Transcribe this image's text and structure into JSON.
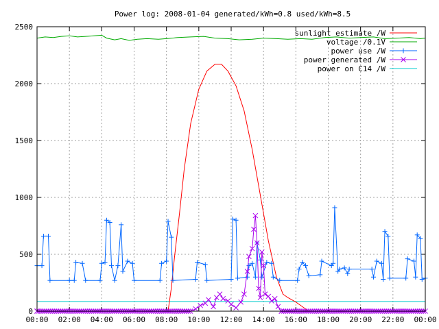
{
  "chart_data": {
    "type": "line",
    "title": "Power log: 2008-01-04 generated/kWh=0.8 used/kWh=8.5",
    "xlabel": "",
    "ylabel": "",
    "x_unit": "hours",
    "xlim": [
      0,
      24
    ],
    "ylim": [
      0,
      2500
    ],
    "grid": true,
    "legend_position": "top-right",
    "x_ticks": [
      {
        "value": 0,
        "label": "00:00"
      },
      {
        "value": 2,
        "label": "02:00"
      },
      {
        "value": 4,
        "label": "04:00"
      },
      {
        "value": 6,
        "label": "06:00"
      },
      {
        "value": 8,
        "label": "08:00"
      },
      {
        "value": 10,
        "label": "10:00"
      },
      {
        "value": 12,
        "label": "12:00"
      },
      {
        "value": 14,
        "label": "14:00"
      },
      {
        "value": 16,
        "label": "16:00"
      },
      {
        "value": 18,
        "label": "18:00"
      },
      {
        "value": 20,
        "label": "20:00"
      },
      {
        "value": 22,
        "label": "22:00"
      },
      {
        "value": 24,
        "label": "00:00"
      }
    ],
    "y_ticks": [
      {
        "value": 0,
        "label": "0"
      },
      {
        "value": 500,
        "label": "500"
      },
      {
        "value": 1000,
        "label": "1000"
      },
      {
        "value": 1500,
        "label": "1500"
      },
      {
        "value": 2000,
        "label": "2000"
      },
      {
        "value": 2500,
        "label": "2500"
      }
    ],
    "series": [
      {
        "name": "sunlight estimate /W",
        "color": "#ff0000",
        "marker": "none",
        "points": [
          [
            0,
            0
          ],
          [
            8.1,
            0
          ],
          [
            8.3,
            200
          ],
          [
            8.5,
            480
          ],
          [
            8.8,
            850
          ],
          [
            9.1,
            1250
          ],
          [
            9.5,
            1650
          ],
          [
            10.0,
            1950
          ],
          [
            10.5,
            2110
          ],
          [
            11.0,
            2170
          ],
          [
            11.4,
            2170
          ],
          [
            11.8,
            2110
          ],
          [
            12.3,
            1980
          ],
          [
            12.8,
            1760
          ],
          [
            13.3,
            1420
          ],
          [
            13.8,
            1020
          ],
          [
            14.3,
            620
          ],
          [
            14.8,
            300
          ],
          [
            15.2,
            150
          ],
          [
            15.5,
            120
          ],
          [
            16.0,
            80
          ],
          [
            16.5,
            30
          ],
          [
            16.8,
            0
          ],
          [
            24,
            0
          ]
        ]
      },
      {
        "name": "voltage /0.1V",
        "color": "#00aa00",
        "marker": "none",
        "points": [
          [
            0,
            2400
          ],
          [
            0.5,
            2410
          ],
          [
            1.0,
            2405
          ],
          [
            1.5,
            2415
          ],
          [
            2.0,
            2420
          ],
          [
            2.5,
            2410
          ],
          [
            3.0,
            2415
          ],
          [
            3.5,
            2420
          ],
          [
            4.0,
            2425
          ],
          [
            4.3,
            2400
          ],
          [
            4.8,
            2385
          ],
          [
            5.2,
            2395
          ],
          [
            5.7,
            2380
          ],
          [
            6.2,
            2390
          ],
          [
            6.8,
            2395
          ],
          [
            7.5,
            2390
          ],
          [
            8.0,
            2395
          ],
          [
            8.7,
            2405
          ],
          [
            9.5,
            2410
          ],
          [
            10.3,
            2415
          ],
          [
            11.0,
            2400
          ],
          [
            11.8,
            2395
          ],
          [
            12.5,
            2385
          ],
          [
            13.3,
            2390
          ],
          [
            14.0,
            2400
          ],
          [
            14.8,
            2395
          ],
          [
            15.5,
            2390
          ],
          [
            16.3,
            2395
          ],
          [
            17.0,
            2390
          ],
          [
            17.8,
            2405
          ],
          [
            18.5,
            2410
          ],
          [
            19.3,
            2400
          ],
          [
            20.0,
            2405
          ],
          [
            20.8,
            2410
          ],
          [
            21.5,
            2395
          ],
          [
            22.3,
            2400
          ],
          [
            23.0,
            2405
          ],
          [
            23.7,
            2395
          ],
          [
            24,
            2400
          ]
        ]
      },
      {
        "name": "power use /W",
        "color": "#0066ff",
        "marker": "plus",
        "points": [
          [
            0,
            400
          ],
          [
            0.3,
            400
          ],
          [
            0.4,
            660
          ],
          [
            0.7,
            660
          ],
          [
            0.8,
            270
          ],
          [
            2.0,
            270
          ],
          [
            2.3,
            270
          ],
          [
            2.4,
            430
          ],
          [
            2.8,
            420
          ],
          [
            3.0,
            270
          ],
          [
            3.9,
            270
          ],
          [
            4.0,
            420
          ],
          [
            4.2,
            430
          ],
          [
            4.3,
            800
          ],
          [
            4.5,
            780
          ],
          [
            4.6,
            400
          ],
          [
            4.8,
            270
          ],
          [
            5.0,
            400
          ],
          [
            5.2,
            760
          ],
          [
            5.3,
            350
          ],
          [
            5.6,
            440
          ],
          [
            5.9,
            420
          ],
          [
            6.0,
            270
          ],
          [
            7.6,
            270
          ],
          [
            7.7,
            420
          ],
          [
            8.0,
            440
          ],
          [
            8.1,
            790
          ],
          [
            8.3,
            650
          ],
          [
            8.4,
            270
          ],
          [
            9.8,
            280
          ],
          [
            9.9,
            430
          ],
          [
            10.4,
            410
          ],
          [
            10.5,
            270
          ],
          [
            12.0,
            280
          ],
          [
            12.1,
            810
          ],
          [
            12.3,
            800
          ],
          [
            12.4,
            290
          ],
          [
            13.0,
            300
          ],
          [
            13.1,
            400
          ],
          [
            13.3,
            420
          ],
          [
            13.5,
            300
          ],
          [
            13.6,
            600
          ],
          [
            13.8,
            450
          ],
          [
            13.9,
            300
          ],
          [
            14.2,
            430
          ],
          [
            14.5,
            420
          ],
          [
            14.6,
            300
          ],
          [
            15.0,
            270
          ],
          [
            16.1,
            270
          ],
          [
            16.2,
            370
          ],
          [
            16.4,
            430
          ],
          [
            16.6,
            400
          ],
          [
            16.8,
            310
          ],
          [
            17.5,
            320
          ],
          [
            17.6,
            440
          ],
          [
            18.2,
            400
          ],
          [
            18.3,
            420
          ],
          [
            18.4,
            910
          ],
          [
            18.6,
            350
          ],
          [
            18.7,
            370
          ],
          [
            19.0,
            380
          ],
          [
            19.2,
            330
          ],
          [
            19.3,
            370
          ],
          [
            20.7,
            370
          ],
          [
            20.8,
            300
          ],
          [
            21.0,
            440
          ],
          [
            21.3,
            420
          ],
          [
            21.4,
            280
          ],
          [
            21.5,
            700
          ],
          [
            21.7,
            660
          ],
          [
            21.8,
            290
          ],
          [
            22.8,
            290
          ],
          [
            22.9,
            460
          ],
          [
            23.3,
            440
          ],
          [
            23.4,
            300
          ],
          [
            23.5,
            670
          ],
          [
            23.7,
            640
          ],
          [
            23.8,
            280
          ],
          [
            24,
            290
          ]
        ]
      },
      {
        "name": "power generated /W",
        "color": "#aa00ee",
        "marker": "cross",
        "points": [
          [
            0,
            0
          ],
          [
            9.5,
            0
          ],
          [
            9.8,
            20
          ],
          [
            10.1,
            50
          ],
          [
            10.4,
            70
          ],
          [
            10.6,
            100
          ],
          [
            10.9,
            40
          ],
          [
            11.1,
            120
          ],
          [
            11.3,
            150
          ],
          [
            11.5,
            110
          ],
          [
            11.8,
            90
          ],
          [
            12.0,
            60
          ],
          [
            12.3,
            30
          ],
          [
            12.6,
            80
          ],
          [
            12.8,
            150
          ],
          [
            13.0,
            350
          ],
          [
            13.1,
            480
          ],
          [
            13.3,
            550
          ],
          [
            13.4,
            720
          ],
          [
            13.5,
            840
          ],
          [
            13.6,
            600
          ],
          [
            13.7,
            200
          ],
          [
            13.8,
            120
          ],
          [
            13.9,
            520
          ],
          [
            14.0,
            400
          ],
          [
            14.1,
            150
          ],
          [
            14.3,
            130
          ],
          [
            14.5,
            90
          ],
          [
            14.7,
            110
          ],
          [
            14.9,
            40
          ],
          [
            15.1,
            0
          ],
          [
            24,
            0
          ]
        ]
      },
      {
        "name": "power on C14 /W",
        "color": "#00cccc",
        "marker": "none",
        "points": [
          [
            0,
            85
          ],
          [
            24,
            85
          ]
        ]
      }
    ]
  }
}
